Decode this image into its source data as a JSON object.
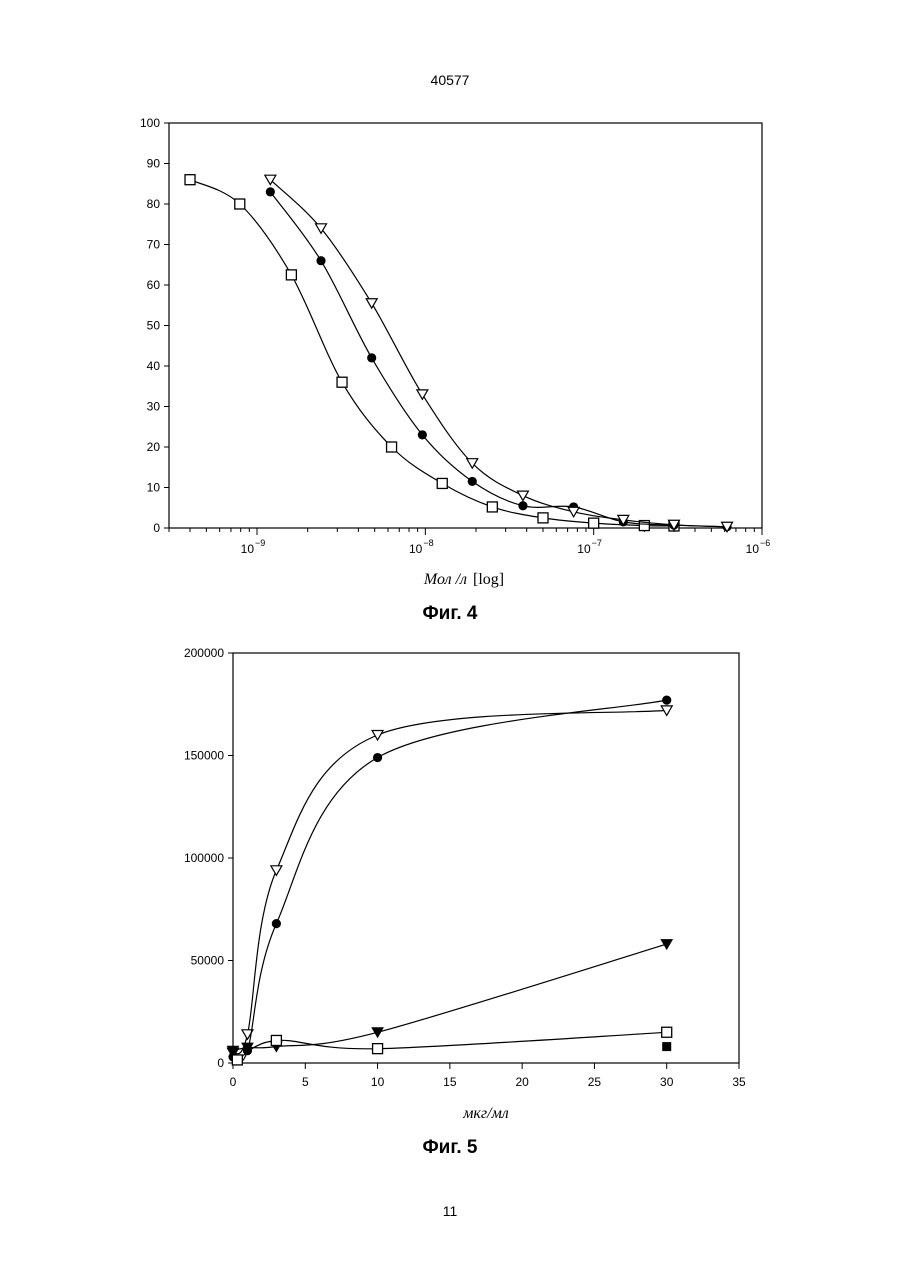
{
  "page": {
    "top_number": "40577",
    "bottom_number": "11"
  },
  "chart_data": [
    {
      "type": "scatter",
      "caption": "Фиг. 4",
      "xlabel": "Мол /л",
      "xlabel_suffix": "[log]",
      "ylabel": "",
      "xscale": "log",
      "xlim": [
        3e-10,
        1e-06
      ],
      "ylim": [
        0,
        100
      ],
      "yticks": [
        0,
        10,
        20,
        30,
        40,
        50,
        60,
        70,
        80,
        90,
        100
      ],
      "xticks": [
        {
          "value": 1e-09,
          "base": "10",
          "exp": "−9"
        },
        {
          "value": 1e-08,
          "base": "10",
          "exp": "−8"
        },
        {
          "value": 1e-07,
          "base": "10",
          "exp": "−7"
        },
        {
          "value": 1e-06,
          "base": "10",
          "exp": "−6"
        }
      ],
      "grid": false,
      "series": [
        {
          "marker": "open-square",
          "points": [
            [
              4e-10,
              86
            ],
            [
              7.9e-10,
              80
            ],
            [
              1.6e-09,
              62.5
            ],
            [
              3.2e-09,
              36
            ],
            [
              6.3e-09,
              20
            ],
            [
              1.26e-08,
              11
            ],
            [
              2.5e-08,
              5.2
            ],
            [
              5e-08,
              2.5
            ],
            [
              1e-07,
              1.2
            ],
            [
              2e-07,
              0.6
            ],
            [
              3e-07,
              0.5
            ]
          ]
        },
        {
          "marker": "filled-circle",
          "points": [
            [
              1.2e-09,
              83
            ],
            [
              2.4e-09,
              66
            ],
            [
              4.8e-09,
              42
            ],
            [
              9.6e-09,
              23
            ],
            [
              1.9e-08,
              11.5
            ],
            [
              3.8e-08,
              5.5
            ],
            [
              7.6e-08,
              5.2
            ],
            [
              1.5e-07,
              1.5
            ],
            [
              3e-07,
              0.7
            ],
            [
              6.2e-07,
              0.3
            ]
          ]
        },
        {
          "marker": "open-triangle-down",
          "points": [
            [
              1.2e-09,
              86
            ],
            [
              2.4e-09,
              74
            ],
            [
              4.8e-09,
              55.5
            ],
            [
              9.6e-09,
              33
            ],
            [
              1.9e-08,
              16
            ],
            [
              3.8e-08,
              8
            ],
            [
              7.6e-08,
              4
            ],
            [
              1.5e-07,
              2
            ],
            [
              3e-07,
              0.8
            ],
            [
              6.2e-07,
              0.3
            ]
          ]
        }
      ]
    },
    {
      "type": "scatter",
      "caption": "Фиг. 5",
      "xlabel": "мкг/мл",
      "ylabel": "",
      "xlim": [
        0,
        35
      ],
      "ylim": [
        0,
        200000
      ],
      "xticks": [
        0,
        5,
        10,
        15,
        20,
        25,
        30,
        35
      ],
      "yticks": [
        0,
        50000,
        100000,
        150000,
        200000
      ],
      "grid": false,
      "series": [
        {
          "marker": "open-triangle-down",
          "points": [
            [
              0,
              5000
            ],
            [
              1,
              14000
            ],
            [
              3,
              94000
            ],
            [
              10,
              160000
            ],
            [
              30,
              172000
            ]
          ]
        },
        {
          "marker": "filled-circle",
          "points": [
            [
              0,
              3000
            ],
            [
              1,
              6000
            ],
            [
              3,
              68000
            ],
            [
              10,
              149000
            ],
            [
              30,
              177000
            ]
          ]
        },
        {
          "marker": "filled-triangle-down",
          "points": [
            [
              0,
              6000
            ],
            [
              1,
              7500
            ],
            [
              3,
              8000
            ],
            [
              10,
              15000
            ],
            [
              30,
              58000
            ]
          ]
        },
        {
          "marker": "open-square",
          "points": [
            [
              0.3,
              1500
            ],
            [
              3,
              11000
            ],
            [
              10,
              7000
            ],
            [
              30,
              15000
            ]
          ]
        },
        {
          "marker": "filled-square",
          "points": [
            [
              30,
              8000
            ]
          ]
        }
      ]
    }
  ]
}
